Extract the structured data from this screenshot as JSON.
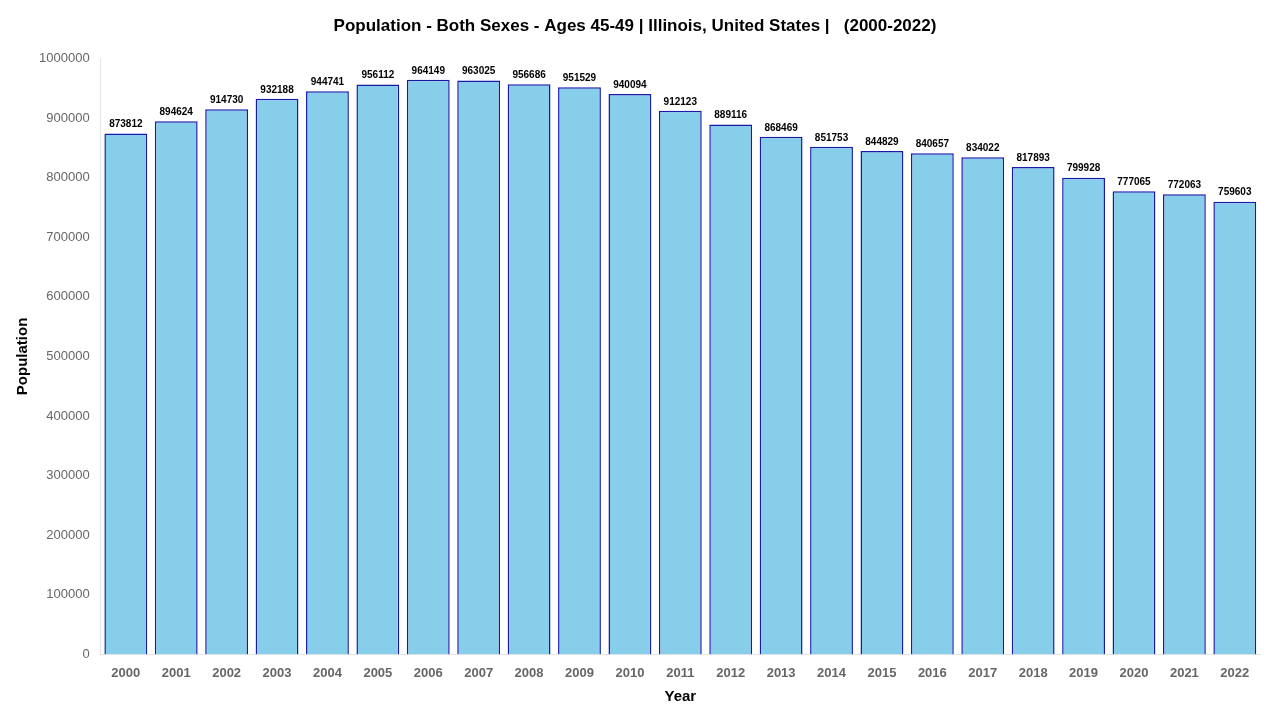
{
  "chart_data": {
    "type": "bar",
    "title": "Population - Both Sexes - Ages 45-49 | Illinois, United States |   (2000-2022)",
    "xlabel": "Year",
    "ylabel": "Population",
    "categories": [
      "2000",
      "2001",
      "2002",
      "2003",
      "2004",
      "2005",
      "2006",
      "2007",
      "2008",
      "2009",
      "2010",
      "2011",
      "2012",
      "2013",
      "2014",
      "2015",
      "2016",
      "2017",
      "2018",
      "2019",
      "2020",
      "2021",
      "2022"
    ],
    "values": [
      873812,
      894624,
      914730,
      932188,
      944741,
      956112,
      964149,
      963025,
      956686,
      951529,
      940094,
      912123,
      889116,
      868469,
      851753,
      844829,
      840657,
      834022,
      817893,
      799928,
      777065,
      772063,
      759603
    ],
    "color": "#87CEEB",
    "ylim": [
      0,
      1000000
    ],
    "yticks": [
      0,
      100000,
      200000,
      300000,
      400000,
      500000,
      600000,
      700000,
      800000,
      900000,
      1000000
    ],
    "grid": false,
    "data_labels": true
  }
}
